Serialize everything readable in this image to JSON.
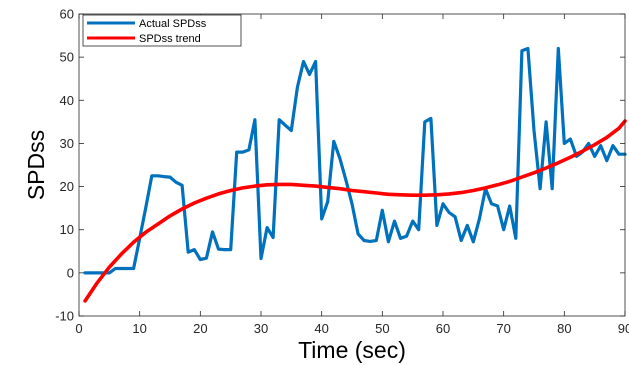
{
  "chart_data": {
    "type": "line",
    "xlabel": "Time (sec)",
    "ylabel": "SPDss",
    "xlim": [
      0,
      90
    ],
    "ylim": [
      -10,
      60
    ],
    "xticks": [
      0,
      10,
      20,
      30,
      40,
      50,
      60,
      70,
      80,
      90
    ],
    "yticks": [
      -10,
      0,
      10,
      20,
      30,
      40,
      50,
      60
    ],
    "grid": false,
    "legend_position": "top-left",
    "series": [
      {
        "name": "Actual SPDss",
        "color": "#0072BD",
        "x": [
          1,
          2,
          3,
          4,
          5,
          6,
          7,
          8,
          9,
          10,
          11,
          12,
          13,
          14,
          15,
          16,
          17,
          18,
          19,
          20,
          21,
          22,
          23,
          24,
          25,
          26,
          27,
          28,
          29,
          30,
          31,
          32,
          33,
          34,
          35,
          36,
          37,
          38,
          39,
          40,
          41,
          42,
          43,
          44,
          45,
          46,
          47,
          48,
          49,
          50,
          51,
          52,
          53,
          54,
          55,
          56,
          57,
          58,
          59,
          60,
          61,
          62,
          63,
          64,
          65,
          66,
          67,
          68,
          69,
          70,
          71,
          72,
          73,
          74,
          75,
          76,
          77,
          78,
          79,
          80,
          81,
          82,
          83,
          84,
          85,
          86,
          87,
          88,
          89,
          90
        ],
        "y": [
          0,
          0,
          0,
          0,
          0,
          1,
          1,
          1,
          1,
          8,
          15,
          22.5,
          22.5,
          22.3,
          22.2,
          21,
          20.3,
          4.8,
          5.4,
          3.1,
          3.4,
          9.5,
          5.5,
          5.4,
          5.4,
          28,
          28,
          28.5,
          35.5,
          3.3,
          10.5,
          8.2,
          35.5,
          34.2,
          33,
          43,
          49,
          46,
          49,
          12.5,
          16.5,
          30.5,
          26.5,
          21.5,
          16,
          9,
          7.5,
          7.3,
          7.5,
          14.5,
          7.2,
          12,
          8,
          8.5,
          12,
          10,
          35,
          35.8,
          11,
          16,
          14,
          13,
          7.5,
          11,
          7.2,
          12.5,
          19.5,
          16,
          15.5,
          10,
          15.5,
          8,
          51.5,
          52,
          33,
          19.5,
          35,
          19.5,
          52,
          30,
          31,
          27,
          28,
          30,
          27,
          29.5,
          26,
          29.5,
          27.5,
          27.5
        ]
      },
      {
        "name": "SPDss trend",
        "color": "#FF0000",
        "x": [
          1,
          3,
          5,
          7,
          9,
          11,
          13,
          15,
          17,
          19,
          21,
          23,
          25,
          27,
          29,
          31,
          33,
          35,
          37,
          39,
          41,
          43,
          45,
          47,
          49,
          51,
          53,
          55,
          57,
          59,
          61,
          63,
          65,
          67,
          69,
          71,
          73,
          75,
          77,
          79,
          81,
          83,
          85,
          87,
          89,
          90
        ],
        "y": [
          -6.5,
          -2.3,
          1.3,
          4.4,
          7.1,
          9.4,
          11.3,
          13.2,
          14.8,
          16.2,
          17.3,
          18.3,
          19.1,
          19.7,
          20.1,
          20.4,
          20.5,
          20.5,
          20.3,
          20.1,
          19.8,
          19.5,
          19.1,
          18.8,
          18.5,
          18.2,
          18.1,
          18.0,
          18.0,
          18.1,
          18.3,
          18.6,
          19.1,
          19.7,
          20.4,
          21.2,
          22.2,
          23.2,
          24.3,
          25.5,
          26.8,
          28.2,
          29.7,
          31.4,
          33.5,
          35.2
        ]
      }
    ]
  }
}
